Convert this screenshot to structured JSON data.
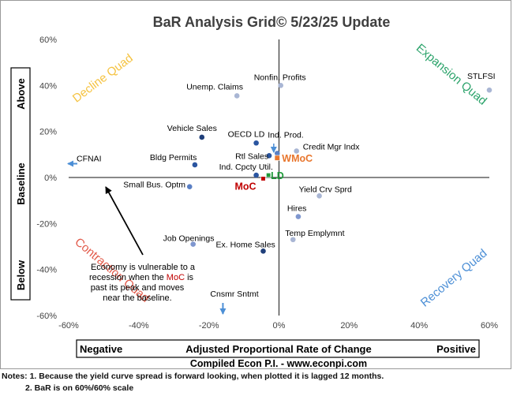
{
  "chart_data": {
    "type": "scatter",
    "title": "BaR Analysis Grid© 5/23/25 Update",
    "xlabel": "Adjusted Proportional Rate of Change",
    "xlabel_left": "Negative",
    "xlabel_right": "Positive",
    "ylabel": "Baseline",
    "ylabel_top": "Above",
    "ylabel_bottom": "Below",
    "credit": "Compiled Econ P.I. - www.econpi.com",
    "xlim": [
      -60,
      60
    ],
    "ylim": [
      -60,
      60
    ],
    "x_ticks": [
      -60,
      -40,
      -20,
      0,
      20,
      40,
      60
    ],
    "x_tick_labels": [
      "-60%",
      "-40%",
      "-20%",
      "0%",
      "20%",
      "40%",
      "60%"
    ],
    "y_ticks": [
      60,
      40,
      20,
      0,
      -20,
      -40,
      -60
    ],
    "y_tick_labels": [
      "60%",
      "40%",
      "20%",
      "0%",
      "-20%",
      "-40%",
      "-60%"
    ],
    "quadrants": [
      {
        "label": "Decline Quad",
        "color": "#f5c342"
      },
      {
        "label": "Expansion Quad",
        "color": "#2ca36b"
      },
      {
        "label": "Contraction Quad",
        "color": "#e25b4b"
      },
      {
        "label": "Recovery Quad",
        "color": "#4c8fd6"
      }
    ],
    "points": [
      {
        "label": "Nonfin. Profits",
        "x": 0.5,
        "y": 40,
        "color": "#a9b6d4"
      },
      {
        "label": "STLFSI",
        "x": 60,
        "y": 38,
        "color": "#a9b6d4"
      },
      {
        "label": "Unemp. Claims",
        "x": -12,
        "y": 35.5,
        "color": "#a9b6d4"
      },
      {
        "label": "Vehicle Sales",
        "x": -22,
        "y": 17.5,
        "color": "#1f3f7a"
      },
      {
        "label": "OECD LD",
        "x": -6.5,
        "y": 15,
        "color": "#2a55a0"
      },
      {
        "label": "Ind. Prod.",
        "x": -0.5,
        "y": 10.5,
        "color": "#5a7fc4"
      },
      {
        "label": "Credit Mgr Indx",
        "x": 5,
        "y": 11.5,
        "color": "#a9b6d4"
      },
      {
        "label": "Rtl Sales",
        "x": -2.8,
        "y": 9.5,
        "color": "#2a55a0"
      },
      {
        "label": "WMoC",
        "x": -0.5,
        "y": 8.5,
        "color": "#e8762d"
      },
      {
        "label": "Bldg Permits",
        "x": -24,
        "y": 5.5,
        "color": "#2a55a0"
      },
      {
        "label": "Ind. Cpcty Util.",
        "x": -6.5,
        "y": 1,
        "color": "#2a55a0"
      },
      {
        "label": "LD",
        "x": -3,
        "y": 1,
        "color": "#1f9a3a"
      },
      {
        "label": "MoC",
        "x": -4.5,
        "y": -0.5,
        "color": "#c00000"
      },
      {
        "label": "Small Bus. Optm",
        "x": -25.5,
        "y": -4,
        "color": "#5a7fc4"
      },
      {
        "label": "Yield Crv Sprd",
        "x": 11.5,
        "y": -8,
        "color": "#a9b6d4"
      },
      {
        "label": "Hires",
        "x": 5.5,
        "y": -17,
        "color": "#7f97cf"
      },
      {
        "label": "Temp Emplymnt",
        "x": 4,
        "y": -27,
        "color": "#a9b6d4"
      },
      {
        "label": "Job Openings",
        "x": -24.5,
        "y": -29,
        "color": "#7f97cf"
      },
      {
        "label": "Ex. Home Sales",
        "x": -4.5,
        "y": -32,
        "color": "#1f3f7a"
      }
    ],
    "offscale_points": [
      {
        "label": "CFNAI",
        "y": 6
      },
      {
        "label": "Cnsmr Sntmt",
        "x": -16
      }
    ],
    "annotation": {
      "segments": [
        {
          "text": "Economy is vulnerable to a",
          "color": "#000000"
        },
        {
          "text": "recession when the ",
          "color": "#000000"
        },
        {
          "text": "MoC",
          "color": "#c00000"
        },
        {
          "text": " is",
          "color": "#000000"
        },
        {
          "text": "past its peak and moves",
          "color": "#000000"
        },
        {
          "text": "near the baseline.",
          "color": "#000000"
        }
      ]
    },
    "notes": [
      "Notes: 1. Because the yield curve spread is forward looking, when plotted it is lagged 12 months.",
      "2. BaR is on 60%/60% scale"
    ]
  }
}
